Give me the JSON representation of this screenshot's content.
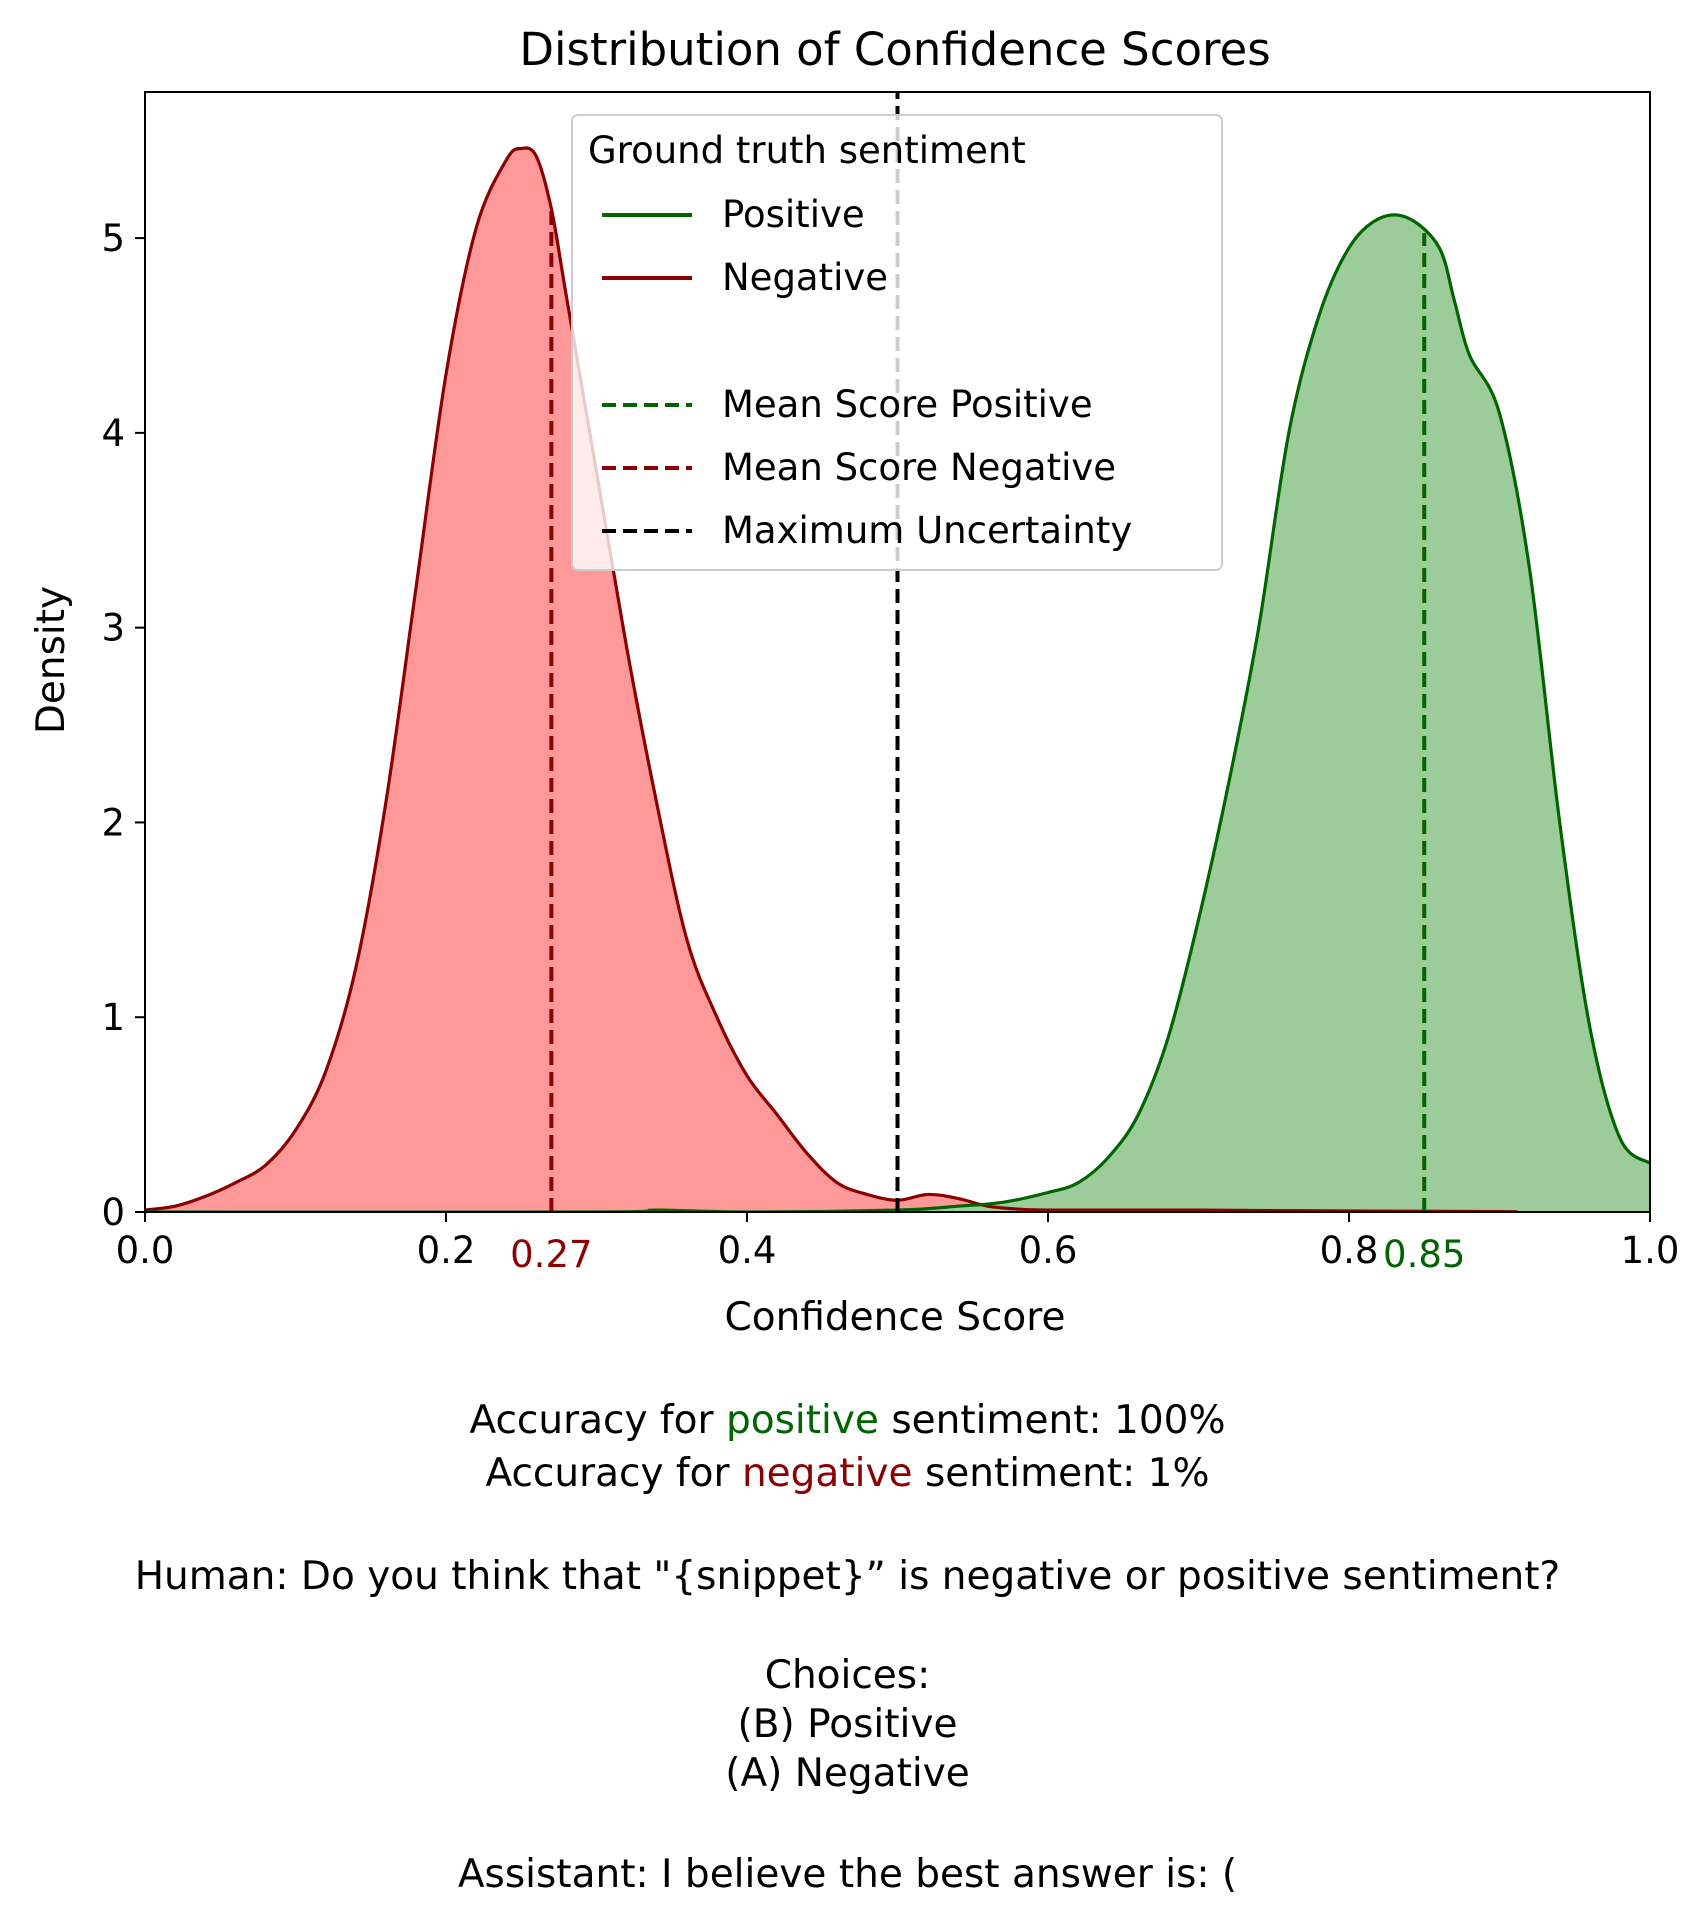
{
  "chart_data": {
    "type": "area",
    "title": "Distribution of Confidence Scores",
    "xlabel": "Confidence Score",
    "ylabel": "Density",
    "xlim": [
      0,
      1
    ],
    "ylim": [
      0,
      5.75
    ],
    "x_ticks": [
      0.0,
      0.2,
      0.4,
      0.6,
      0.8,
      1.0
    ],
    "x_tick_labels": [
      "0.0",
      "0.2",
      "0.4",
      "0.6",
      "0.8",
      "1.0"
    ],
    "y_ticks": [
      0,
      1,
      2,
      3,
      4,
      5
    ],
    "y_tick_labels": [
      "0",
      "1",
      "2",
      "3",
      "4",
      "5"
    ],
    "grid": false,
    "series": [
      {
        "name": "Negative",
        "color": "#8b0000",
        "fill": "#ff9999",
        "x": [
          0.0,
          0.02,
          0.04,
          0.06,
          0.08,
          0.1,
          0.12,
          0.14,
          0.16,
          0.18,
          0.2,
          0.22,
          0.24,
          0.25,
          0.26,
          0.27,
          0.28,
          0.3,
          0.32,
          0.34,
          0.36,
          0.38,
          0.4,
          0.42,
          0.44,
          0.46,
          0.48,
          0.5,
          0.52,
          0.54,
          0.56,
          0.58,
          0.6,
          0.65,
          0.7,
          0.8,
          0.9,
          0.91
        ],
        "y": [
          0.01,
          0.03,
          0.08,
          0.15,
          0.24,
          0.42,
          0.72,
          1.25,
          2.1,
          3.2,
          4.3,
          5.05,
          5.4,
          5.46,
          5.42,
          5.15,
          4.7,
          3.8,
          2.9,
          2.1,
          1.4,
          1.0,
          0.7,
          0.5,
          0.3,
          0.15,
          0.09,
          0.06,
          0.09,
          0.07,
          0.03,
          0.015,
          0.01,
          0.01,
          0.01,
          0.005,
          0.002,
          0.0
        ]
      },
      {
        "name": "Positive",
        "color": "#006400",
        "fill": "#9ccc99",
        "x": [
          0.0,
          0.3,
          0.34,
          0.4,
          0.5,
          0.54,
          0.57,
          0.6,
          0.62,
          0.64,
          0.66,
          0.68,
          0.7,
          0.72,
          0.74,
          0.76,
          0.78,
          0.8,
          0.82,
          0.84,
          0.86,
          0.87,
          0.88,
          0.9,
          0.92,
          0.94,
          0.96,
          0.98,
          1.0
        ],
        "y": [
          0.0,
          0.0,
          0.01,
          0.0,
          0.01,
          0.03,
          0.05,
          0.1,
          0.15,
          0.28,
          0.5,
          0.9,
          1.5,
          2.2,
          3.0,
          4.0,
          4.6,
          4.95,
          5.1,
          5.1,
          4.95,
          4.68,
          4.4,
          4.1,
          3.3,
          2.0,
          0.95,
          0.38,
          0.25
        ]
      }
    ],
    "mean_lines": [
      {
        "name": "Mean Score Positive",
        "x": 0.85,
        "color": "#006400",
        "label": "0.85"
      },
      {
        "name": "Mean Score Negative",
        "x": 0.27,
        "color": "#8b0000",
        "label": "0.27"
      },
      {
        "name": "Maximum Uncertainty",
        "x": 0.5,
        "color": "#000000"
      }
    ],
    "legend": {
      "title": "Ground truth sentiment",
      "placement": "top-center",
      "entries": [
        {
          "label": "Positive",
          "color": "#006400",
          "style": "solid"
        },
        {
          "label": "Negative",
          "color": "#8b0000",
          "style": "solid"
        },
        {
          "label": "Mean Score Positive",
          "color": "#006400",
          "style": "dashed"
        },
        {
          "label": "Mean Score Negative",
          "color": "#8b0000",
          "style": "dashed"
        },
        {
          "label": "Maximum Uncertainty",
          "color": "#000000",
          "style": "dashed"
        }
      ]
    }
  },
  "caption": {
    "acc_pos_prefix": "Accuracy for ",
    "acc_pos_word": "positive",
    "acc_pos_suffix": " sentiment: 100%",
    "acc_neg_prefix": "Accuracy for ",
    "acc_neg_word": "negative",
    "acc_neg_suffix": " sentiment: 1%",
    "human": "Human: Do you think that \"{snippet}” is negative or positive sentiment?",
    "choices": "Choices:",
    "choice_b": "(B) Positive",
    "choice_a": "(A) Negative",
    "assistant": "Assistant: I believe the best answer is: ("
  },
  "colors": {
    "positive": "#006400",
    "negative": "#8b0000"
  }
}
